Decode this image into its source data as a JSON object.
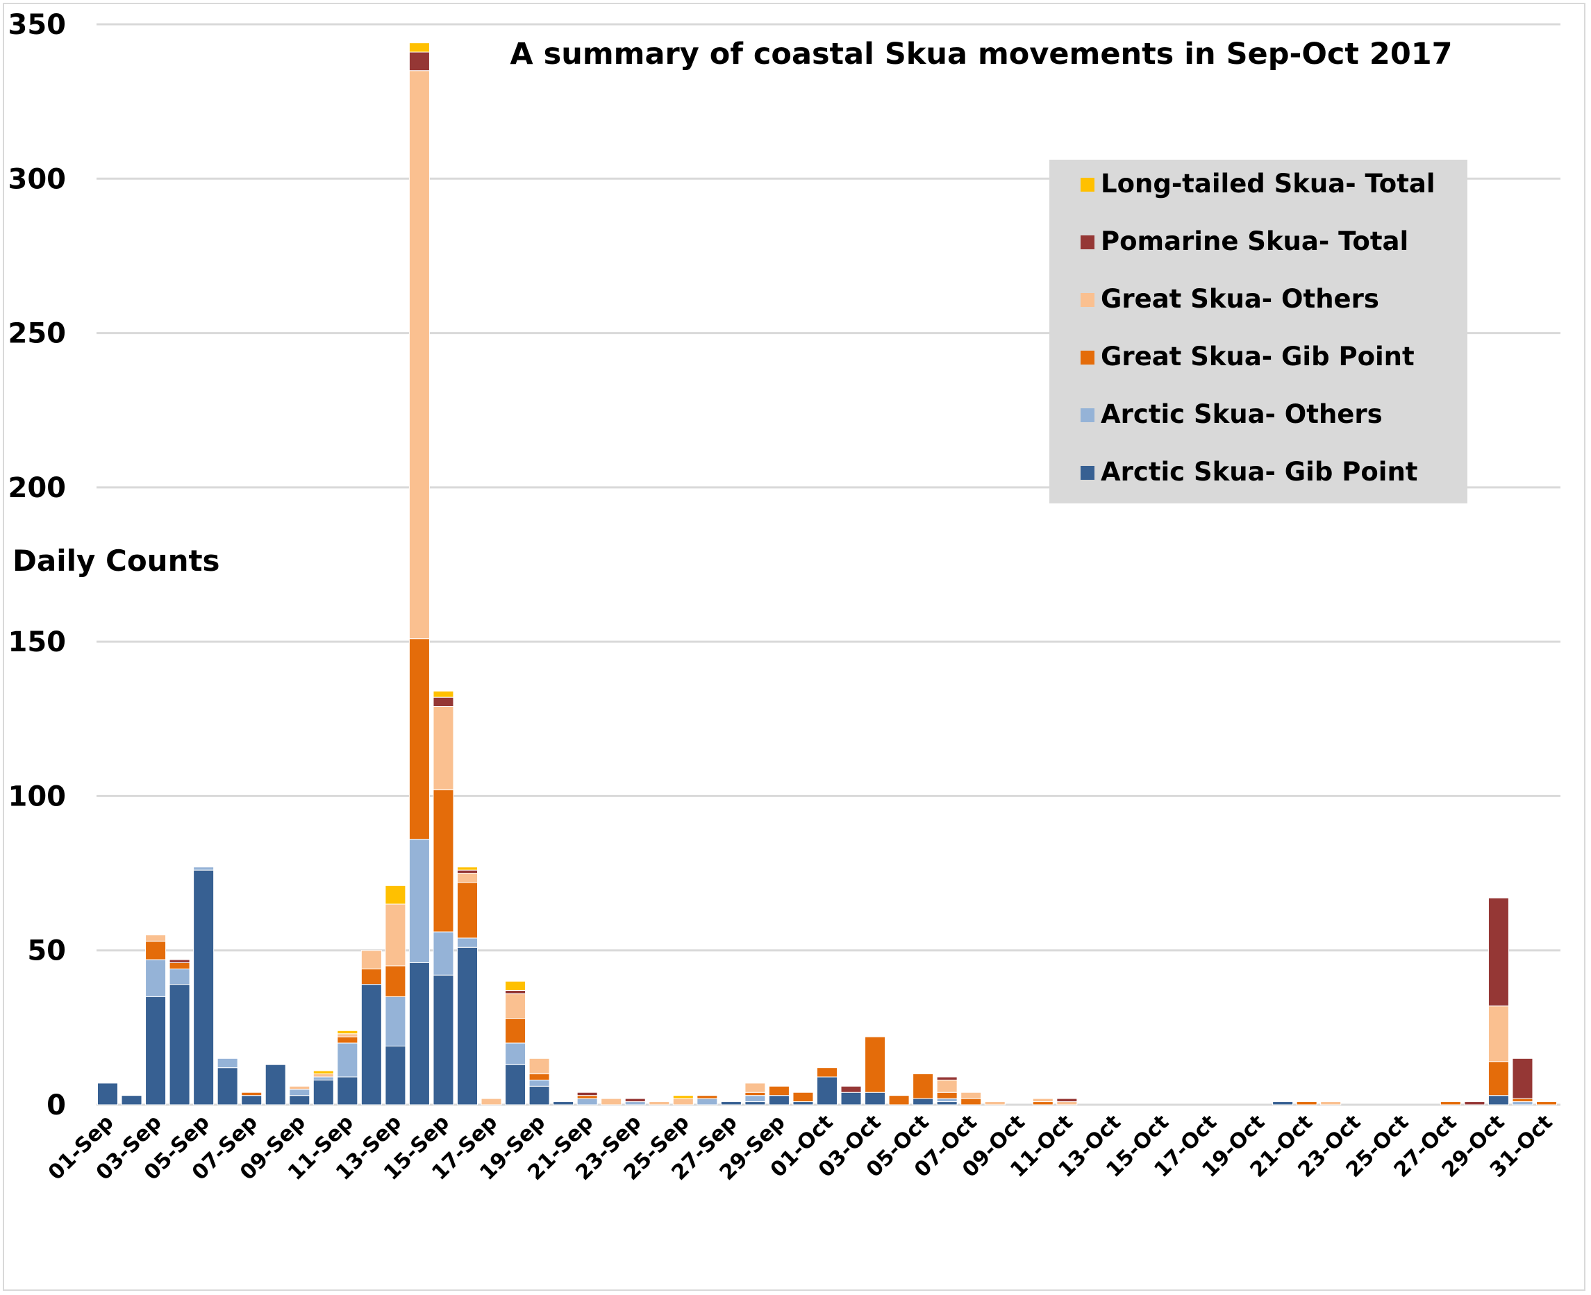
{
  "chart_data": {
    "type": "bar",
    "stacked": true,
    "title": "A summary of coastal Skua movements in Sep-Oct 2017",
    "ylabel": "Daily Counts",
    "xlabel": "",
    "ylim": [
      0,
      350
    ],
    "yticks": [
      0,
      50,
      100,
      150,
      200,
      250,
      300,
      350
    ],
    "grid": true,
    "legend_position": "top-right",
    "categories": [
      "01-Sep",
      "02-Sep",
      "03-Sep",
      "04-Sep",
      "05-Sep",
      "06-Sep",
      "07-Sep",
      "08-Sep",
      "09-Sep",
      "10-Sep",
      "11-Sep",
      "12-Sep",
      "13-Sep",
      "14-Sep",
      "15-Sep",
      "16-Sep",
      "17-Sep",
      "18-Sep",
      "19-Sep",
      "20-Sep",
      "21-Sep",
      "22-Sep",
      "23-Sep",
      "24-Sep",
      "25-Sep",
      "26-Sep",
      "27-Sep",
      "28-Sep",
      "29-Sep",
      "30-Sep",
      "01-Oct",
      "02-Oct",
      "03-Oct",
      "04-Oct",
      "05-Oct",
      "06-Oct",
      "07-Oct",
      "08-Oct",
      "09-Oct",
      "10-Oct",
      "11-Oct",
      "12-Oct",
      "13-Oct",
      "14-Oct",
      "15-Oct",
      "16-Oct",
      "17-Oct",
      "18-Oct",
      "19-Oct",
      "20-Oct",
      "21-Oct",
      "22-Oct",
      "23-Oct",
      "24-Oct",
      "25-Oct",
      "26-Oct",
      "27-Oct",
      "28-Oct",
      "29-Oct",
      "30-Oct",
      "31-Oct"
    ],
    "tick_labels": [
      "01-Sep",
      "03-Sep",
      "05-Sep",
      "07-Sep",
      "09-Sep",
      "11-Sep",
      "13-Sep",
      "15-Sep",
      "17-Sep",
      "19-Sep",
      "21-Sep",
      "23-Sep",
      "25-Sep",
      "27-Sep",
      "29-Sep",
      "01-Oct",
      "03-Oct",
      "05-Oct",
      "07-Oct",
      "09-Oct",
      "11-Oct",
      "13-Oct",
      "15-Oct",
      "17-Oct",
      "19-Oct",
      "21-Oct",
      "23-Oct",
      "25-Oct",
      "27-Oct",
      "29-Oct",
      "31-Oct"
    ],
    "series": [
      {
        "name": "Arctic Skua- Gib Point",
        "color": "#376092",
        "values": [
          7,
          3,
          35,
          39,
          76,
          12,
          3,
          13,
          3,
          8,
          9,
          39,
          19,
          46,
          42,
          51,
          0,
          13,
          6,
          1,
          0,
          0,
          0,
          0,
          0,
          0,
          1,
          1,
          3,
          1,
          9,
          4,
          4,
          0,
          2,
          1,
          0,
          0,
          0,
          0,
          0,
          0,
          0,
          0,
          0,
          0,
          0,
          0,
          0,
          1,
          0,
          0,
          0,
          0,
          0,
          0,
          0,
          0,
          3,
          0,
          0
        ]
      },
      {
        "name": "Arctic Skua- Others",
        "color": "#95B3D7",
        "values": [
          0,
          0,
          12,
          5,
          1,
          3,
          0,
          0,
          2,
          1,
          11,
          0,
          16,
          40,
          14,
          3,
          0,
          7,
          2,
          0,
          2,
          0,
          1,
          0,
          0,
          2,
          0,
          2,
          0,
          0,
          0,
          0,
          0,
          0,
          0,
          1,
          0,
          0,
          0,
          0,
          0,
          0,
          0,
          0,
          0,
          0,
          0,
          0,
          0,
          0,
          0,
          0,
          0,
          0,
          0,
          0,
          0,
          0,
          0,
          1,
          0
        ]
      },
      {
        "name": "Great Skua- Gib Point",
        "color": "#E46C0A",
        "values": [
          0,
          0,
          6,
          2,
          0,
          0,
          1,
          0,
          0,
          0,
          2,
          5,
          10,
          65,
          46,
          18,
          0,
          8,
          2,
          0,
          1,
          0,
          0,
          0,
          0,
          1,
          0,
          1,
          3,
          3,
          3,
          0,
          18,
          3,
          8,
          2,
          2,
          0,
          0,
          1,
          0,
          0,
          0,
          0,
          0,
          0,
          0,
          0,
          0,
          0,
          1,
          0,
          0,
          0,
          0,
          0,
          1,
          0,
          11,
          1,
          1
        ]
      },
      {
        "name": "Great Skua- Others",
        "color": "#FAC090",
        "values": [
          0,
          0,
          2,
          0,
          0,
          0,
          0,
          0,
          1,
          1,
          1,
          6,
          20,
          184,
          27,
          3,
          2,
          8,
          5,
          0,
          0,
          2,
          0,
          1,
          2,
          0,
          0,
          3,
          0,
          0,
          0,
          0,
          0,
          0,
          0,
          4,
          2,
          1,
          0,
          1,
          1,
          0,
          0,
          0,
          0,
          0,
          0,
          0,
          0,
          0,
          0,
          1,
          0,
          0,
          0,
          0,
          0,
          0,
          18,
          0,
          0
        ]
      },
      {
        "name": "Pomarine Skua- Total",
        "color": "#953735",
        "values": [
          0,
          0,
          0,
          1,
          0,
          0,
          0,
          0,
          0,
          0,
          0,
          0,
          0,
          6,
          3,
          1,
          0,
          1,
          0,
          0,
          1,
          0,
          1,
          0,
          0,
          0,
          0,
          0,
          0,
          0,
          0,
          2,
          0,
          0,
          0,
          1,
          0,
          0,
          0,
          0,
          1,
          0,
          0,
          0,
          0,
          0,
          0,
          0,
          0,
          0,
          0,
          0,
          0,
          0,
          0,
          0,
          0,
          1,
          35,
          13,
          0
        ]
      },
      {
        "name": "Long-tailed Skua- Total",
        "color": "#FFC000",
        "values": [
          0,
          0,
          0,
          0,
          0,
          0,
          0,
          0,
          0,
          1,
          1,
          0,
          6,
          3,
          2,
          1,
          0,
          3,
          0,
          0,
          0,
          0,
          0,
          0,
          1,
          0,
          0,
          0,
          0,
          0,
          0,
          0,
          0,
          0,
          0,
          0,
          0,
          0,
          0,
          0,
          0,
          0,
          0,
          0,
          0,
          0,
          0,
          0,
          0,
          0,
          0,
          0,
          0,
          0,
          0,
          0,
          0,
          0,
          0,
          0,
          0
        ]
      }
    ]
  }
}
